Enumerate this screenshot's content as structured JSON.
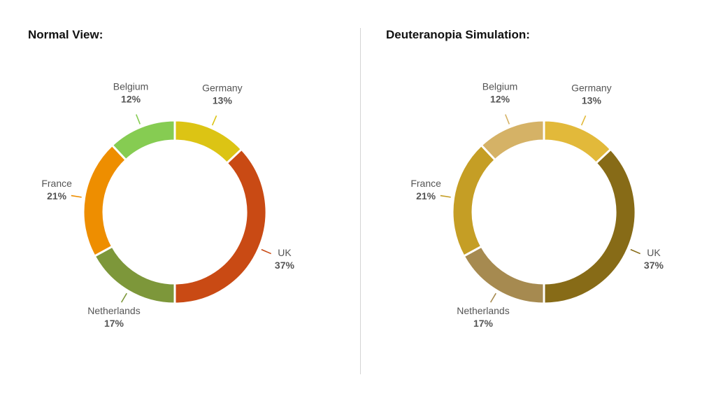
{
  "titles": {
    "left": "Normal View:",
    "right": "Deuteranopia Simulation:"
  },
  "chart_data": [
    {
      "type": "pie",
      "title": "Normal View:",
      "variant": "donut",
      "categories": [
        "UK",
        "Netherlands",
        "France",
        "Belgium",
        "Germany"
      ],
      "values": [
        37,
        17,
        21,
        12,
        13
      ],
      "labels": [
        "37%",
        "17%",
        "21%",
        "12%",
        "13%"
      ],
      "colors": [
        "#C94A14",
        "#7D973A",
        "#EE8E00",
        "#86CC52",
        "#DCC414"
      ]
    },
    {
      "type": "pie",
      "title": "Deuteranopia Simulation:",
      "variant": "donut",
      "categories": [
        "UK",
        "Netherlands",
        "France",
        "Belgium",
        "Germany"
      ],
      "values": [
        37,
        17,
        21,
        12,
        13
      ],
      "labels": [
        "37%",
        "17%",
        "21%",
        "12%",
        "13%"
      ],
      "colors": [
        "#876B17",
        "#A68A50",
        "#C59E25",
        "#D5B266",
        "#E2B93A"
      ]
    }
  ]
}
